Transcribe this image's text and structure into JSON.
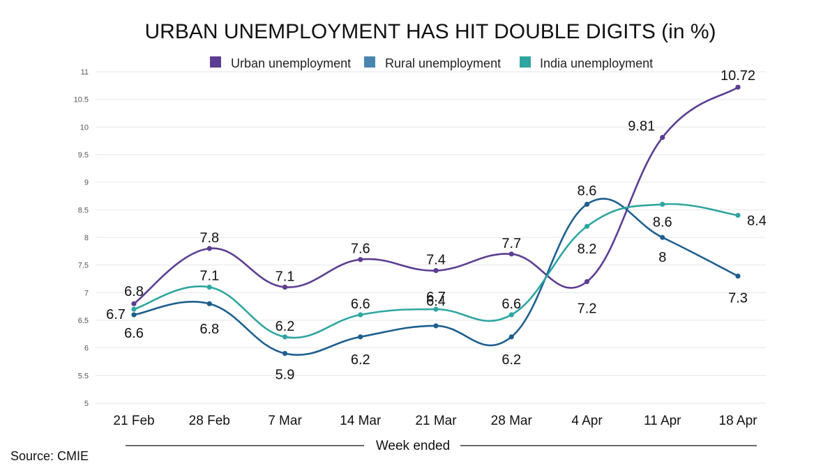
{
  "chart_data": {
    "type": "line",
    "title": "URBAN UNEMPLOYMENT HAS HIT DOUBLE DIGITS (in %)",
    "xlabel": "Week ended",
    "ylabel": "",
    "ylim": [
      5,
      11
    ],
    "yticks": [
      5,
      5.5,
      6,
      6.5,
      7,
      7.5,
      8,
      8.5,
      9,
      9.5,
      10,
      10.5,
      11
    ],
    "grid": true,
    "legend_position": "top",
    "categories": [
      "21 Feb",
      "28 Feb",
      "7 Mar",
      "14 Mar",
      "21 Mar",
      "28 Mar",
      "4 Apr",
      "11 Apr",
      "18 Apr"
    ],
    "series": [
      {
        "name": "Urban unemployment",
        "color": "#5b3d91",
        "values": [
          6.8,
          7.8,
          7.1,
          7.6,
          7.4,
          7.7,
          7.2,
          9.81,
          10.72
        ],
        "labels": [
          "6.8",
          "7.8",
          "7.1",
          "7.6",
          "7.4",
          "7.7",
          "7.2",
          "9.81",
          "10.72"
        ]
      },
      {
        "name": "Rural unemployment",
        "color": "#1d5f8e",
        "values": [
          6.6,
          6.8,
          5.9,
          6.2,
          6.4,
          6.2,
          8.6,
          8.0,
          7.3
        ],
        "labels": [
          "6.6",
          "6.8",
          "5.9",
          "6.2",
          "6.4",
          "6.2",
          "8.6",
          "8",
          "7.3"
        ]
      },
      {
        "name": "India unemployment",
        "color": "#2fa5a0",
        "values": [
          6.7,
          7.1,
          6.2,
          6.6,
          6.7,
          6.6,
          8.2,
          8.6,
          8.4
        ],
        "labels": [
          "6.7",
          "7.1",
          "6.2",
          "6.6",
          "6.7",
          "6.6",
          "8.2",
          "8.6",
          "8.4"
        ]
      }
    ],
    "legend_colors": [
      "#5b3d91",
      "#4a86b0",
      "#2fa5a0"
    ]
  },
  "source": "Source: CMIE"
}
